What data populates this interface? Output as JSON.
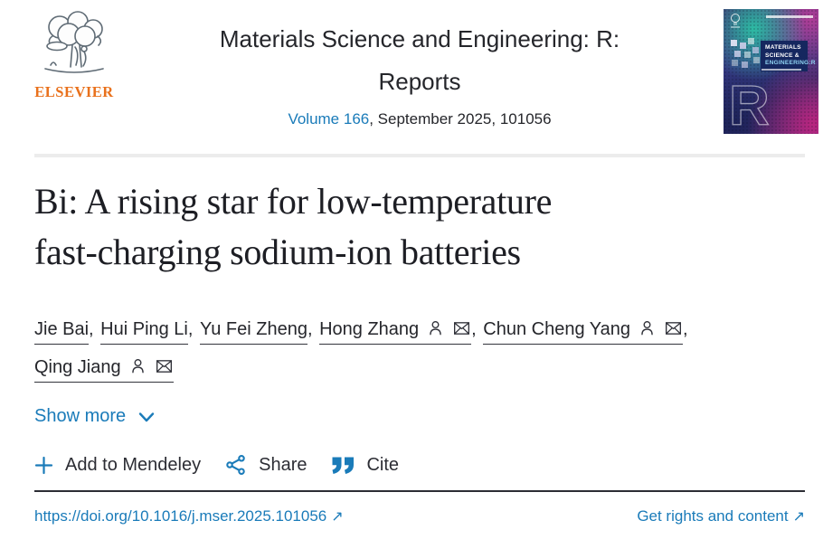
{
  "header": {
    "publisher_wordmark": "ELSEVIER",
    "journal_title_line1": "Materials Science and Engineering: R:",
    "journal_title_line2": "Reports",
    "volume_link_label": "Volume 166",
    "issue_suffix": ", September 2025, 101056",
    "cover_label_line1": "MATERIALS",
    "cover_label_line2": "SCIENCE &",
    "cover_label_line3": "ENGINEERING:R",
    "cover_watermark_letter": "R"
  },
  "article": {
    "title_line1": "Bi: A rising star for low-temperature",
    "title_line2": "fast-charging sodium-ion batteries",
    "authors": [
      {
        "name": "Jie Bai",
        "corresponding": false
      },
      {
        "name": "Hui Ping Li",
        "corresponding": false
      },
      {
        "name": "Yu Fei Zheng",
        "corresponding": false
      },
      {
        "name": "Hong Zhang",
        "corresponding": true
      },
      {
        "name": "Chun Cheng Yang",
        "corresponding": true
      },
      {
        "name": "Qing Jiang",
        "corresponding": true
      }
    ],
    "author_separator": ", ",
    "show_more_label": "Show more"
  },
  "actions": {
    "mendeley_label": "Add to Mendeley",
    "share_label": "Share",
    "cite_label": "Cite"
  },
  "footer": {
    "doi_link": "https://doi.org/10.1016/j.mser.2025.101056",
    "rights_link": "Get rights and content"
  },
  "icons": {
    "external_arrow": "↗"
  },
  "colors": {
    "link_blue": "#1a7bb9",
    "elsevier_orange": "#e9711c",
    "text_dark": "#25262b"
  }
}
